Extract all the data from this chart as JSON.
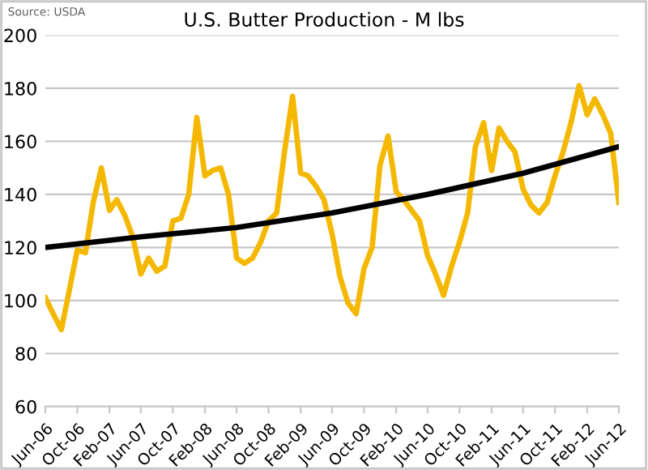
{
  "chart_data": {
    "type": "line",
    "title": "U.S. Butter Production - M lbs",
    "annotations": [
      "Source: USDA"
    ],
    "x": [
      "2006-06",
      "2006-07",
      "2006-08",
      "2006-09",
      "2006-10",
      "2006-11",
      "2006-12",
      "2007-01",
      "2007-02",
      "2007-03",
      "2007-04",
      "2007-05",
      "2007-06",
      "2007-07",
      "2007-08",
      "2007-09",
      "2007-10",
      "2007-11",
      "2007-12",
      "2008-01",
      "2008-02",
      "2008-03",
      "2008-04",
      "2008-05",
      "2008-06",
      "2008-07",
      "2008-08",
      "2008-09",
      "2008-10",
      "2008-11",
      "2008-12",
      "2009-01",
      "2009-02",
      "2009-03",
      "2009-04",
      "2009-05",
      "2009-06",
      "2009-07",
      "2009-08",
      "2009-09",
      "2009-10",
      "2009-11",
      "2009-12",
      "2010-01",
      "2010-02",
      "2010-03",
      "2010-04",
      "2010-05",
      "2010-06",
      "2010-07",
      "2010-08",
      "2010-09",
      "2010-10",
      "2010-11",
      "2010-12",
      "2011-01",
      "2011-02",
      "2011-03",
      "2011-04",
      "2011-05",
      "2011-06",
      "2011-07",
      "2011-08",
      "2011-09",
      "2011-10",
      "2011-11",
      "2011-12",
      "2012-01",
      "2012-02",
      "2012-03",
      "2012-04",
      "2012-05",
      "2012-06"
    ],
    "series": [
      {
        "color": "#f5b800",
        "values": [
          101,
          95,
          89,
          104,
          119,
          118,
          137,
          150,
          134,
          138,
          132,
          124,
          110,
          116,
          111,
          113,
          130,
          131,
          140,
          169,
          147,
          149,
          150,
          140,
          116,
          114,
          116,
          122,
          130,
          133,
          156,
          177,
          148,
          147,
          143,
          138,
          125,
          109,
          99,
          95,
          112,
          120,
          151,
          162,
          141,
          138,
          134,
          130,
          117,
          110,
          102,
          113,
          122,
          133,
          158,
          167,
          149,
          165,
          160,
          156,
          142,
          136,
          133,
          137,
          147,
          156,
          167,
          181,
          170,
          176,
          170,
          163,
          137
        ]
      },
      {
        "type": "line",
        "color": "#000000",
        "x": [
          "2006-06",
          "2007-06",
          "2008-06",
          "2009-06",
          "2010-06",
          "2011-06",
          "2012-06"
        ],
        "values": [
          120,
          124,
          127.5,
          133,
          140,
          148,
          158
        ]
      }
    ],
    "xlim": [
      "2006-06",
      "2012-06"
    ],
    "xticks": [
      {
        "value": "2006-06",
        "label": "Jun-06"
      },
      {
        "value": "2006-10",
        "label": "Oct-06"
      },
      {
        "value": "2007-02",
        "label": "Feb-07"
      },
      {
        "value": "2007-06",
        "label": "Jun-07"
      },
      {
        "value": "2007-10",
        "label": "Oct-07"
      },
      {
        "value": "2008-02",
        "label": "Feb-08"
      },
      {
        "value": "2008-06",
        "label": "Jun-08"
      },
      {
        "value": "2008-10",
        "label": "Oct-08"
      },
      {
        "value": "2009-02",
        "label": "Feb-09"
      },
      {
        "value": "2009-06",
        "label": "Jun-09"
      },
      {
        "value": "2009-10",
        "label": "Oct-09"
      },
      {
        "value": "2010-02",
        "label": "Feb-10"
      },
      {
        "value": "2010-06",
        "label": "Jun-10"
      },
      {
        "value": "2010-10",
        "label": "Oct-10"
      },
      {
        "value": "2011-02",
        "label": "Feb-11"
      },
      {
        "value": "2011-06",
        "label": "Jun-11"
      },
      {
        "value": "2011-10",
        "label": "Oct-11"
      },
      {
        "value": "2012-02",
        "label": "Feb-12"
      },
      {
        "value": "2012-06",
        "label": "Jun-12"
      }
    ],
    "ylim": [
      60,
      200
    ],
    "yticks": [
      60,
      80,
      100,
      120,
      140,
      160,
      180,
      200
    ],
    "grid": "y",
    "legend": false,
    "marker": "none",
    "line_style": "solid"
  }
}
